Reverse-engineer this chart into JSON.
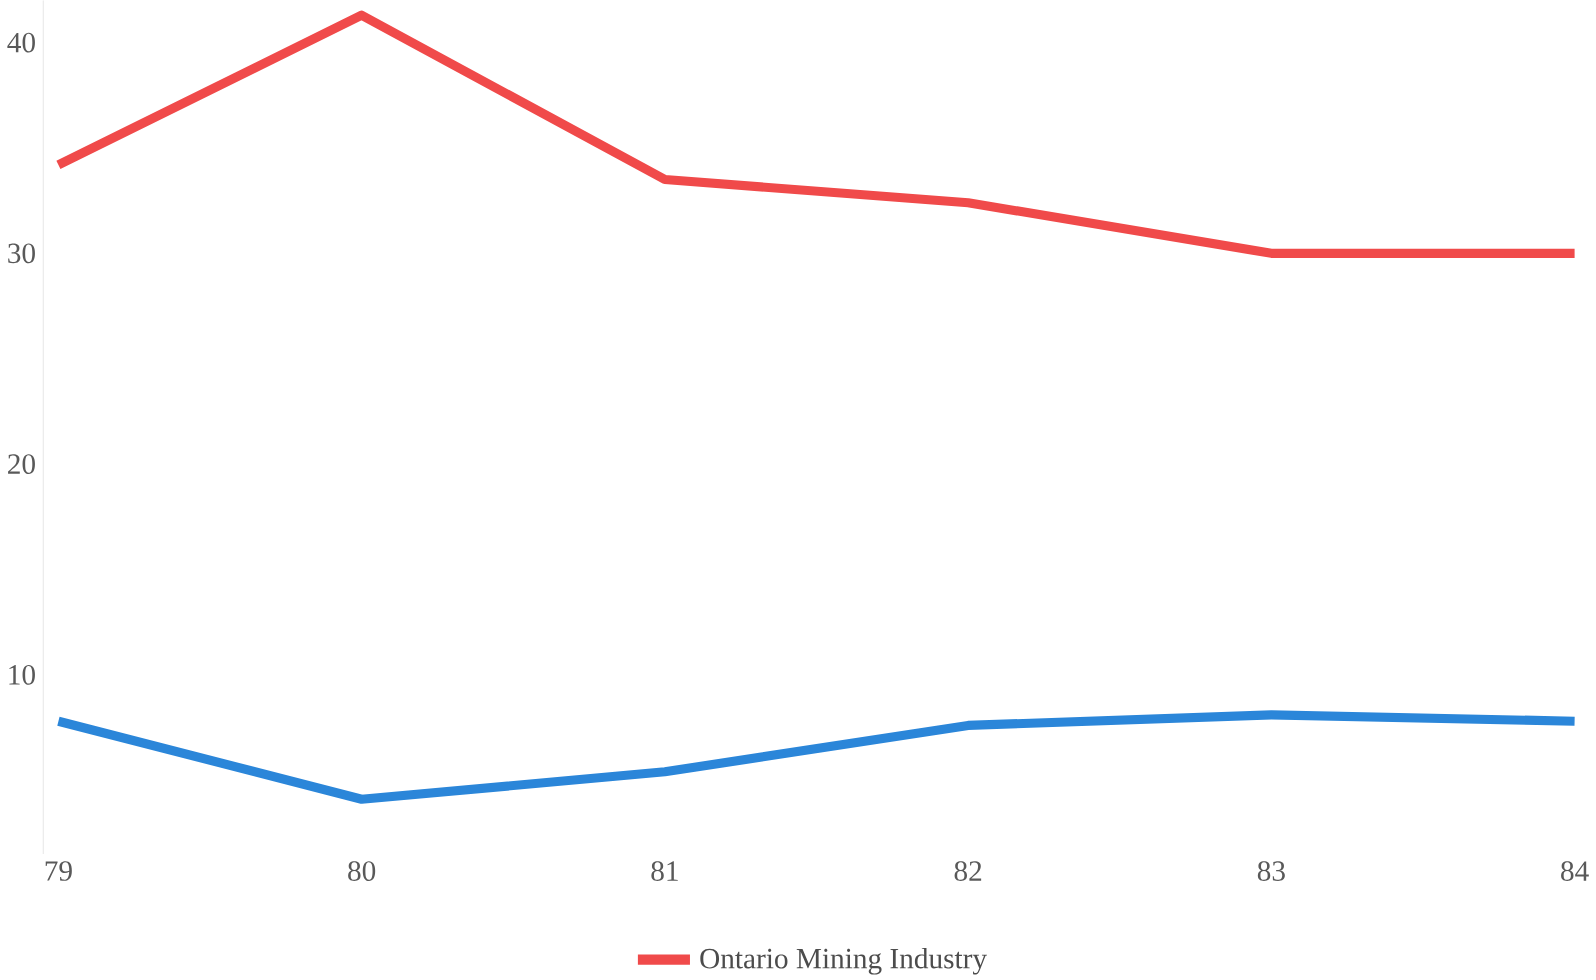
{
  "chart_data": {
    "type": "line",
    "categories": [
      "79",
      "80",
      "81",
      "82",
      "83",
      "84"
    ],
    "series": [
      {
        "name": "Ontario Mining Industry",
        "color": "#f04a4a",
        "values": [
          34.2,
          41.3,
          33.5,
          32.4,
          30,
          30
        ]
      },
      {
        "color": "#2b86d9",
        "values": [
          7.8,
          4.1,
          5.4,
          7.6,
          8.1,
          7.8
        ]
      }
    ],
    "ylim": [
      1.5,
      42
    ],
    "yticks": [
      10,
      20,
      30,
      40
    ],
    "grid": false,
    "legend": "bottom",
    "marker": "none",
    "line_style": "solid"
  }
}
